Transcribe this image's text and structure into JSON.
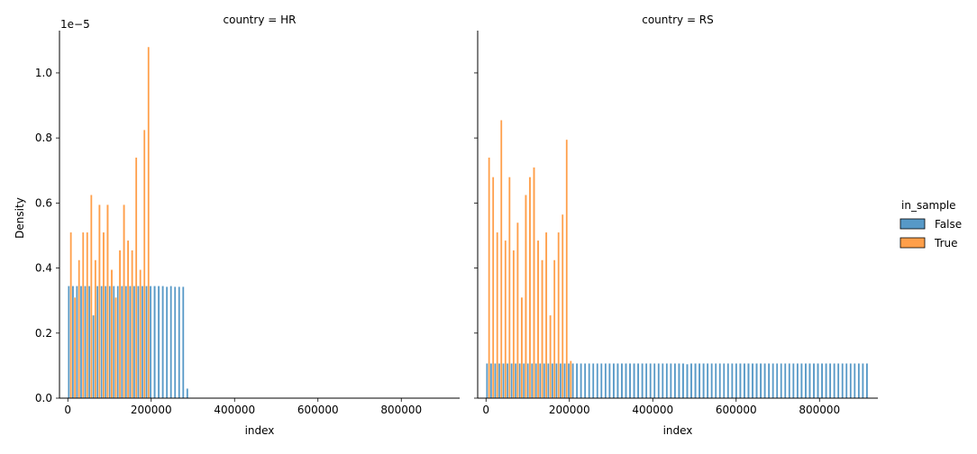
{
  "chart_data": {
    "type": "bar",
    "hue_title": "in_sample",
    "legend_placement": "right",
    "grid": false,
    "xlabel": "index",
    "ylabel": "Density",
    "y_offset_label": "1e−5",
    "xlim": [
      -20000,
      940000
    ],
    "ylim": [
      0,
      1.13e-05
    ],
    "x_ticks": [
      0,
      200000,
      400000,
      600000,
      800000
    ],
    "x_tick_labels": [
      "0",
      "200000",
      "400000",
      "600000",
      "800000"
    ],
    "y_ticks": [
      0,
      2e-06,
      4e-06,
      6e-06,
      8e-06,
      1e-05
    ],
    "y_tick_labels": [
      "0.0",
      "0.2",
      "0.4",
      "0.6",
      "0.8",
      "1.0"
    ],
    "series_style": [
      {
        "name": "False",
        "color": "#1f77b4"
      },
      {
        "name": "True",
        "color": "#ff7f0e"
      }
    ],
    "panels": [
      {
        "title": "country = HR",
        "bin_start": 0,
        "bin_width": 9800,
        "series": [
          {
            "name": "False",
            "values": [
              3.45e-06,
              3.45e-06,
              3.45e-06,
              3.45e-06,
              3.45e-06,
              3.45e-06,
              2.55e-06,
              3.45e-06,
              3.45e-06,
              3.45e-06,
              3.45e-06,
              3.45e-06,
              3.45e-06,
              3.45e-06,
              3.45e-06,
              3.45e-06,
              3.45e-06,
              3.45e-06,
              3.45e-06,
              3.45e-06,
              3.45e-06,
              3.45e-06,
              3.45e-06,
              3.45e-06,
              3.43e-06,
              3.45e-06,
              3.43e-06,
              3.43e-06,
              3.43e-06,
              3e-07
            ]
          },
          {
            "name": "True",
            "values": [
              5.1e-06,
              3.1e-06,
              4.25e-06,
              5.1e-06,
              5.1e-06,
              6.25e-06,
              4.25e-06,
              5.95e-06,
              5.1e-06,
              5.95e-06,
              3.95e-06,
              3.1e-06,
              4.55e-06,
              5.95e-06,
              4.85e-06,
              4.55e-06,
              7.4e-06,
              3.95e-06,
              8.25e-06,
              1.08e-05
            ]
          }
        ]
      },
      {
        "title": "country = RS",
        "bin_start": 0,
        "bin_width": 9800,
        "series": [
          {
            "name": "False",
            "values": [
              1.07e-06,
              1.07e-06,
              1.07e-06,
              1.07e-06,
              1.07e-06,
              1.07e-06,
              1.07e-06,
              1.07e-06,
              1.07e-06,
              1.07e-06,
              1.07e-06,
              1.07e-06,
              1.07e-06,
              1.07e-06,
              1.07e-06,
              1.07e-06,
              1.07e-06,
              1.07e-06,
              1.07e-06,
              1.07e-06,
              1.07e-06,
              1.07e-06,
              1.07e-06,
              1.07e-06,
              1.07e-06,
              1.07e-06,
              1.07e-06,
              1.07e-06,
              1.07e-06,
              1.07e-06,
              1.07e-06,
              1.07e-06,
              1.07e-06,
              1.07e-06,
              1.07e-06,
              1.07e-06,
              1.07e-06,
              1.07e-06,
              1.07e-06,
              1.07e-06,
              1.07e-06,
              1.07e-06,
              1.07e-06,
              1.07e-06,
              1.07e-06,
              1.07e-06,
              1.07e-06,
              1.07e-06,
              1.07e-06,
              1.05e-06,
              1.07e-06,
              1.07e-06,
              1.07e-06,
              1.07e-06,
              1.07e-06,
              1.07e-06,
              1.07e-06,
              1.07e-06,
              1.07e-06,
              1.07e-06,
              1.07e-06,
              1.07e-06,
              1.07e-06,
              1.07e-06,
              1.07e-06,
              1.07e-06,
              1.07e-06,
              1.07e-06,
              1.07e-06,
              1.07e-06,
              1.07e-06,
              1.07e-06,
              1.07e-06,
              1.07e-06,
              1.07e-06,
              1.07e-06,
              1.07e-06,
              1.07e-06,
              1.07e-06,
              1.07e-06,
              1.07e-06,
              1.07e-06,
              1.07e-06,
              1.07e-06,
              1.07e-06,
              1.07e-06,
              1.07e-06,
              1.07e-06,
              1.07e-06,
              1.07e-06,
              1.07e-06,
              1.07e-06,
              1.07e-06,
              1.07e-06
            ]
          },
          {
            "name": "True",
            "values": [
              7.4e-06,
              6.8e-06,
              5.1e-06,
              8.55e-06,
              4.85e-06,
              6.8e-06,
              4.55e-06,
              5.4e-06,
              3.1e-06,
              6.25e-06,
              6.8e-06,
              7.1e-06,
              4.85e-06,
              4.25e-06,
              5.1e-06,
              2.55e-06,
              4.25e-06,
              5.1e-06,
              5.65e-06,
              7.95e-06,
              1.15e-06
            ]
          }
        ]
      }
    ]
  }
}
